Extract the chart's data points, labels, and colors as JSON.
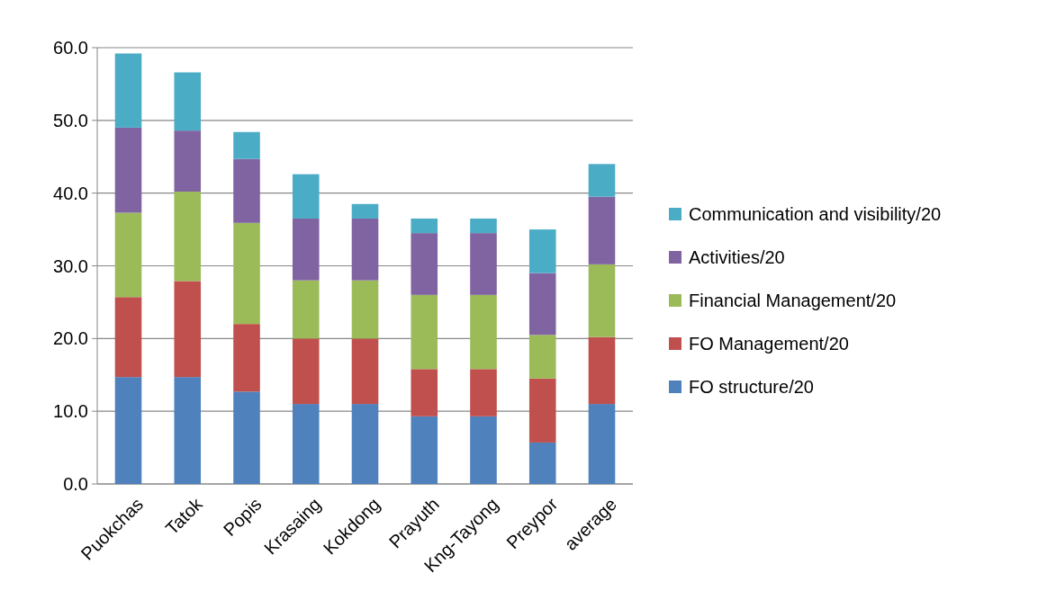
{
  "chart_data": {
    "type": "bar",
    "stacked": true,
    "categories": [
      "Puokchas",
      "Tatok",
      "Popis",
      "Krasaing",
      "Kokdong",
      "Prayuth",
      "Kng-Tayong",
      "Preypor",
      "average"
    ],
    "series": [
      {
        "name": "FO structure/20",
        "color": "#4f81bd",
        "values": [
          14.7,
          14.7,
          12.7,
          11,
          11,
          9.3,
          9.3,
          5.7,
          11
        ]
      },
      {
        "name": "FO Management/20",
        "color": "#c0504d",
        "values": [
          11,
          13.2,
          9.3,
          9,
          9,
          6.5,
          6.5,
          8.8,
          9.2
        ]
      },
      {
        "name": "Financial Management/20",
        "color": "#9bbb59",
        "values": [
          11.6,
          12.3,
          13.9,
          8,
          8,
          10.2,
          10.2,
          6,
          10
        ]
      },
      {
        "name": "Activities/20",
        "color": "#8064a2",
        "values": [
          11.7,
          8.4,
          8.8,
          8.5,
          8.5,
          8.5,
          8.5,
          8.5,
          9.3
        ]
      },
      {
        "name": "Communication and visibility/20",
        "color": "#4bacc6",
        "values": [
          10.2,
          8,
          3.7,
          6.1,
          2,
          2,
          2,
          6,
          4.5
        ]
      }
    ],
    "ylim": [
      0,
      60
    ],
    "yticks": [
      {
        "value": 0,
        "label": "0.0"
      },
      {
        "value": 10,
        "label": "10.0"
      },
      {
        "value": 20,
        "label": "20.0"
      },
      {
        "value": 30,
        "label": "30.0"
      },
      {
        "value": 40,
        "label": "40.0"
      },
      {
        "value": 50,
        "label": "50.0"
      },
      {
        "value": 60,
        "label": "60.0"
      }
    ],
    "grid": "y",
    "legend": "right"
  }
}
